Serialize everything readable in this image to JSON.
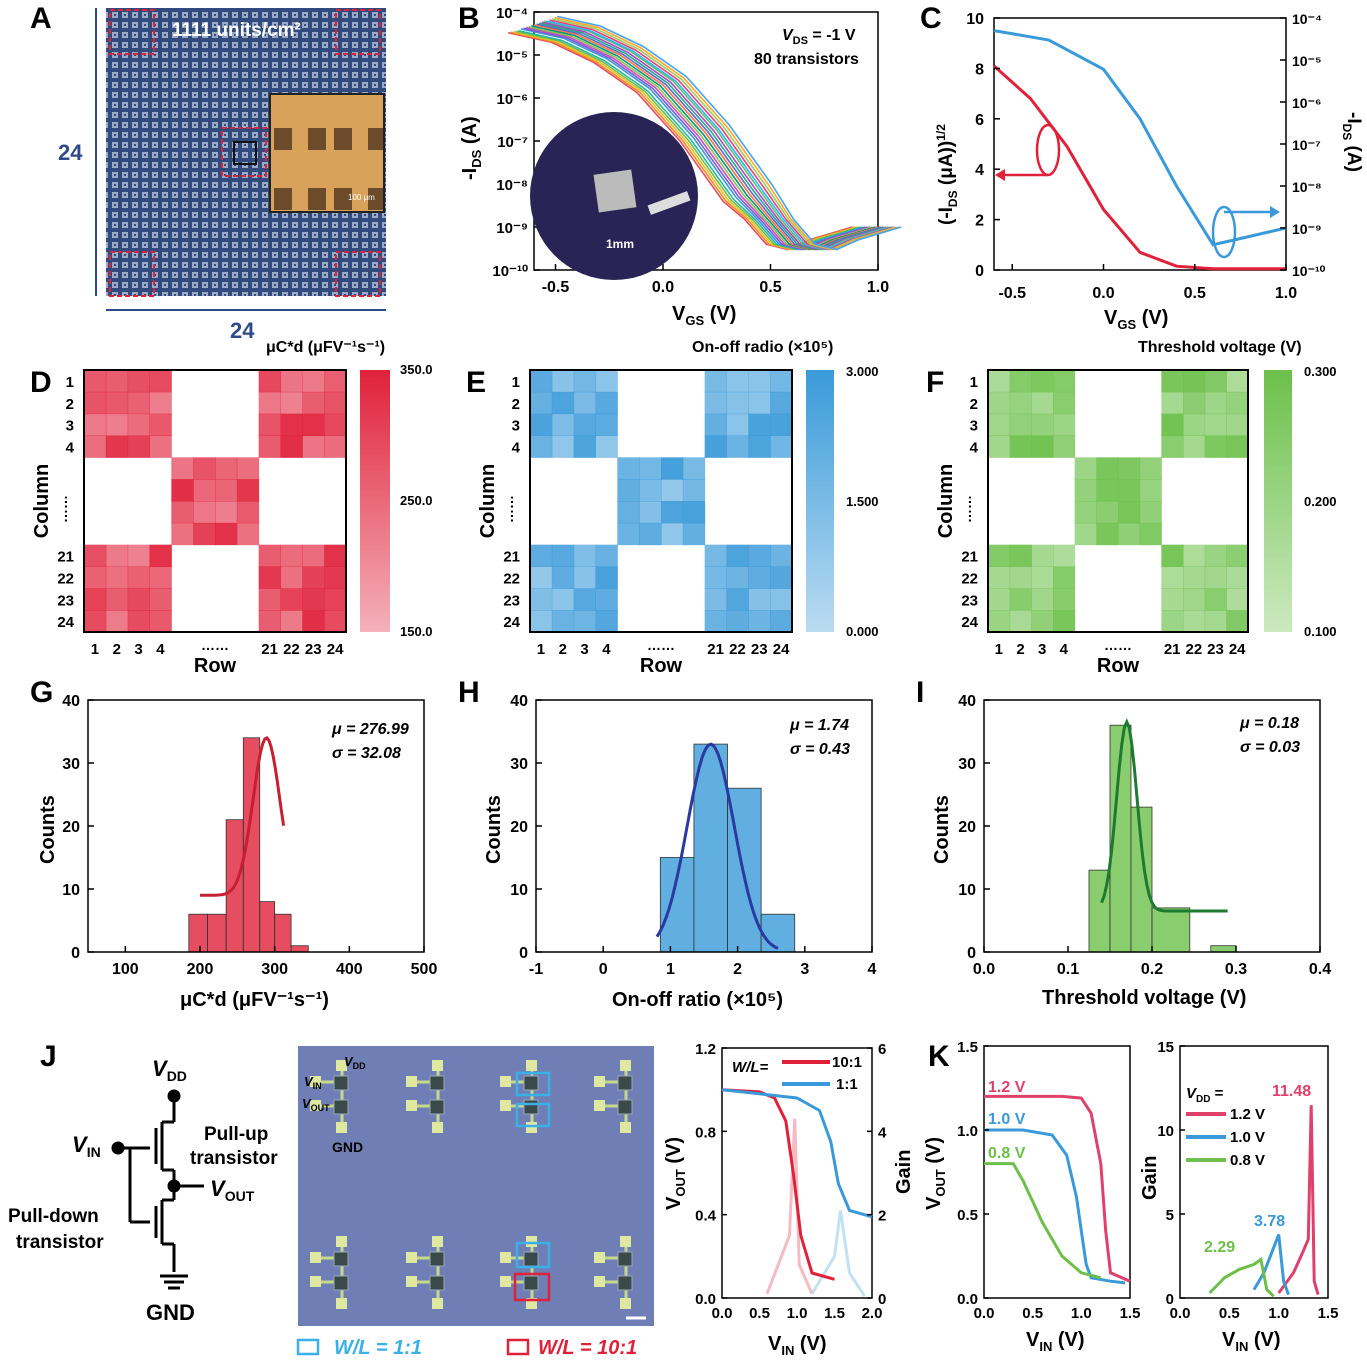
{
  "colors": {
    "red": "#e0213a",
    "blue": "#3a9ad9",
    "green": "#6cc04a",
    "navy": "#2f4a8a",
    "darkred": "#c81e32",
    "navyline": "#2a3aa0",
    "darkgreen": "#1e7a30",
    "photo_bg": "#6f7fb5",
    "chip": "#4f6698"
  },
  "panel_letters": [
    "A",
    "B",
    "C",
    "D",
    "E",
    "F",
    "G",
    "H",
    "I",
    "J",
    "K"
  ],
  "panel_a": {
    "density": "1111 units/cm²",
    "width_label": "24",
    "height_label": "24",
    "scale": "100 μm"
  },
  "panel_b": {
    "annotation1": "V",
    "annotation1_sub": "DS",
    "annotation1_rest": " = -1 V",
    "annotation2": "80 transistors",
    "scale": "1mm"
  },
  "panel_d": {
    "cbar_title": "μC*d (μFV⁻¹s⁻¹)",
    "ticks": [
      "350.0",
      "250.0",
      "150.0"
    ]
  },
  "panel_e": {
    "cbar_title": "On-off radio (×10⁵)",
    "ticks": [
      "3.000",
      "1.500",
      "0.000"
    ]
  },
  "panel_f": {
    "cbar_title": "Threshold voltage (V)",
    "ticks": [
      "0.300",
      "0.200",
      "0.100"
    ]
  },
  "heatmap_labels": {
    "rows": [
      "1",
      "2",
      "3",
      "4",
      "21",
      "22",
      "23",
      "24"
    ],
    "cols": [
      "1",
      "2",
      "3",
      "4",
      "21",
      "22",
      "23",
      "24"
    ],
    "dots": "……",
    "ylabel": "Column",
    "xlabel": "Row"
  },
  "panel_j": {
    "vdd": "V",
    "vdd_sub": "DD",
    "vin": "V",
    "vin_sub": "IN",
    "vout": "V",
    "vout_sub": "OUT",
    "pullup": "Pull-up",
    "pullup2": "transistor",
    "pulldown": "Pull-down",
    "pulldown2": "transistor",
    "gnd": "GND",
    "legend1": "W/L = 1:1",
    "legend2": "W/L = 10:1",
    "photo_vdd": "V",
    "photo_vin": "V",
    "photo_vout": "V",
    "photo_gnd": "GND",
    "wl_label": "W/L="
  },
  "chart_data": [
    {
      "panel": "B",
      "type": "line",
      "xlabel": "V_GS (V)",
      "ylabel": "-I_DS (A)",
      "xlim": [
        -0.6,
        1.0
      ],
      "ylim": [
        1e-10,
        0.0001
      ],
      "yscale": "log",
      "xticks": [
        "-0.5",
        "0.0",
        "0.5",
        "1.0"
      ],
      "yticks": [
        "10⁻⁴",
        "10⁻⁵",
        "10⁻⁶",
        "10⁻⁷",
        "10⁻⁸",
        "10⁻⁹",
        "10⁻¹⁰"
      ],
      "series_note": "80 transfer curves",
      "x": [
        -0.6,
        -0.4,
        -0.2,
        0.0,
        0.2,
        0.3,
        0.4,
        0.5,
        0.6,
        0.7,
        0.8,
        1.0
      ],
      "y": [
        5e-05,
        3e-05,
        1e-05,
        2e-06,
        1.5e-07,
        3e-08,
        6e-09,
        1.5e-09,
        4e-10,
        3e-10,
        5e-10,
        1e-09
      ]
    },
    {
      "panel": "C",
      "type": "line",
      "xlabel": "V_GS (V)",
      "ylabel_left": "(-I_DS (μA))^1/2",
      "ylabel_right": "-I_DS (A)",
      "xlim": [
        -0.6,
        1.0
      ],
      "ylim_left": [
        0,
        10
      ],
      "yticks_left": [
        "10",
        "8",
        "6",
        "4",
        "2",
        "0"
      ],
      "yticks_right": [
        "10⁻⁴",
        "10⁻⁵",
        "10⁻⁶",
        "10⁻⁷",
        "10⁻⁸",
        "10⁻⁹",
        "10⁻¹⁰"
      ],
      "xticks": [
        "-0.5",
        "0.0",
        "0.5",
        "1.0"
      ],
      "series": [
        {
          "name": "sqrt",
          "x": [
            -0.6,
            -0.4,
            -0.2,
            0.0,
            0.2,
            0.4,
            0.6,
            1.0
          ],
          "values": [
            8.1,
            6.8,
            4.9,
            2.4,
            0.7,
            0.15,
            0.05,
            0.05
          ]
        },
        {
          "name": "log",
          "x": [
            -0.6,
            -0.3,
            0.0,
            0.2,
            0.4,
            0.6,
            0.7,
            1.0
          ],
          "values": [
            5e-05,
            3e-05,
            6e-06,
            4e-07,
            1e-08,
            4e-10,
            5e-10,
            1e-09
          ]
        }
      ]
    },
    {
      "panel": "G",
      "type": "bar",
      "xlabel": "μC*d (μFV⁻¹s⁻¹)",
      "ylabel": "Counts",
      "xlim": [
        50,
        500
      ],
      "ylim": [
        0,
        40
      ],
      "xticks": [
        "100",
        "200",
        "300",
        "400",
        "500"
      ],
      "yticks": [
        "0",
        "10",
        "20",
        "30",
        "40"
      ],
      "bins": [
        [
          185,
          210,
          6
        ],
        [
          210,
          235,
          6
        ],
        [
          235,
          258,
          21
        ],
        [
          258,
          280,
          34
        ],
        [
          280,
          300,
          8
        ],
        [
          300,
          322,
          6
        ],
        [
          322,
          345,
          1
        ]
      ],
      "mu": "μ = 276.99",
      "sigma": "σ = 32.08"
    },
    {
      "panel": "H",
      "type": "bar",
      "xlabel": "On-off ratio (×10⁵)",
      "ylabel": "Counts",
      "xlim": [
        -1,
        4
      ],
      "ylim": [
        0,
        40
      ],
      "xticks": [
        "-1",
        "0",
        "1",
        "2",
        "3",
        "4"
      ],
      "yticks": [
        "0",
        "10",
        "20",
        "30",
        "40"
      ],
      "bins": [
        [
          0.85,
          1.35,
          15
        ],
        [
          1.35,
          1.85,
          33
        ],
        [
          1.85,
          2.35,
          26
        ],
        [
          2.35,
          2.85,
          6
        ]
      ],
      "mu": "μ = 1.74",
      "sigma": "σ = 0.43"
    },
    {
      "panel": "I",
      "type": "bar",
      "xlabel": "Threshold voltage (V)",
      "ylabel": "Counts",
      "xlim": [
        0.0,
        0.4
      ],
      "ylim": [
        0,
        40
      ],
      "xticks": [
        "0.0",
        "0.1",
        "0.2",
        "0.3",
        "0.4"
      ],
      "yticks": [
        "0",
        "10",
        "20",
        "30",
        "40"
      ],
      "bins": [
        [
          0.125,
          0.15,
          13
        ],
        [
          0.15,
          0.175,
          36
        ],
        [
          0.175,
          0.2,
          23
        ],
        [
          0.2,
          0.245,
          7
        ],
        [
          0.27,
          0.3,
          1
        ]
      ],
      "mu": "μ = 0.18",
      "sigma": "σ = 0.03"
    },
    {
      "panel": "J",
      "type": "line",
      "xlabel": "V_IN (V)",
      "ylabel_left": "V_OUT (V)",
      "ylabel_right": "Gain",
      "xlim": [
        0,
        2.0
      ],
      "ylim_left": [
        0,
        1.2
      ],
      "ylim_right": [
        0,
        6
      ],
      "xticks": [
        "0.0",
        "0.5",
        "1.0",
        "1.5",
        "2.0"
      ],
      "yticks_left": [
        "0.0",
        "0.4",
        "0.8",
        "1.2"
      ],
      "yticks_right": [
        "0",
        "2",
        "4",
        "6"
      ],
      "series": [
        {
          "name": "10:1",
          "x": [
            0,
            0.5,
            0.7,
            0.85,
            0.95,
            1.05,
            1.2,
            1.5
          ],
          "values": [
            1.0,
            0.99,
            0.96,
            0.85,
            0.6,
            0.3,
            0.12,
            0.09
          ]
        },
        {
          "name": "1:1",
          "x": [
            0,
            0.5,
            1.0,
            1.3,
            1.45,
            1.55,
            1.7,
            2.0
          ],
          "values": [
            1.0,
            0.98,
            0.96,
            0.9,
            0.75,
            0.55,
            0.42,
            0.39
          ]
        }
      ]
    },
    {
      "panel": "K",
      "type": "line",
      "xlabel": "V_IN (V)",
      "ylabel": "V_OUT (V)",
      "xlim": [
        0,
        1.5
      ],
      "ylim": [
        0,
        1.5
      ],
      "xticks": [
        "0.0",
        "0.5",
        "1.0",
        "1.5"
      ],
      "yticks": [
        "0.0",
        "0.5",
        "1.0",
        "1.5"
      ],
      "series": [
        {
          "name": "1.2 V",
          "x": [
            0,
            0.8,
            1.0,
            1.1,
            1.2,
            1.25,
            1.3,
            1.5
          ],
          "values": [
            1.2,
            1.2,
            1.19,
            1.1,
            0.8,
            0.4,
            0.15,
            0.1
          ]
        },
        {
          "name": "1.0 V",
          "x": [
            0,
            0.4,
            0.7,
            0.85,
            0.95,
            1.0,
            1.05,
            1.1,
            1.3,
            1.45
          ],
          "values": [
            1.0,
            1.0,
            0.97,
            0.85,
            0.6,
            0.4,
            0.2,
            0.12,
            0.1,
            0.09
          ]
        },
        {
          "name": "0.8 V",
          "x": [
            0,
            0.3,
            0.4,
            0.6,
            0.8,
            1.0,
            1.2
          ],
          "values": [
            0.8,
            0.8,
            0.7,
            0.45,
            0.25,
            0.15,
            0.12
          ]
        }
      ]
    },
    {
      "panel": "K2",
      "type": "line",
      "xlabel": "V_IN (V)",
      "ylabel": "Gain",
      "xlim": [
        0,
        1.5
      ],
      "ylim": [
        0,
        15
      ],
      "xticks": [
        "0.0",
        "0.5",
        "1.0",
        "1.5"
      ],
      "yticks": [
        "0",
        "5",
        "10",
        "15"
      ],
      "legend_title": "V_DD =",
      "series": [
        {
          "name": "1.2 V",
          "peak": "11.48",
          "x": [
            1.0,
            1.15,
            1.25,
            1.3,
            1.33,
            1.36,
            1.4
          ],
          "values": [
            0.3,
            1.5,
            2.8,
            3.5,
            11.48,
            1.0,
            0.2
          ]
        },
        {
          "name": "1.0 V",
          "peak": "3.78",
          "x": [
            0.75,
            0.85,
            0.95,
            1.0,
            1.05,
            1.1
          ],
          "values": [
            0.5,
            1.5,
            3.0,
            3.78,
            1.0,
            0.2
          ]
        },
        {
          "name": "0.8 V",
          "peak": "2.29",
          "x": [
            0.3,
            0.45,
            0.6,
            0.75,
            0.82,
            0.88,
            0.95
          ],
          "values": [
            0.3,
            1.2,
            1.7,
            2.0,
            2.29,
            0.5,
            0.1
          ]
        }
      ]
    }
  ]
}
